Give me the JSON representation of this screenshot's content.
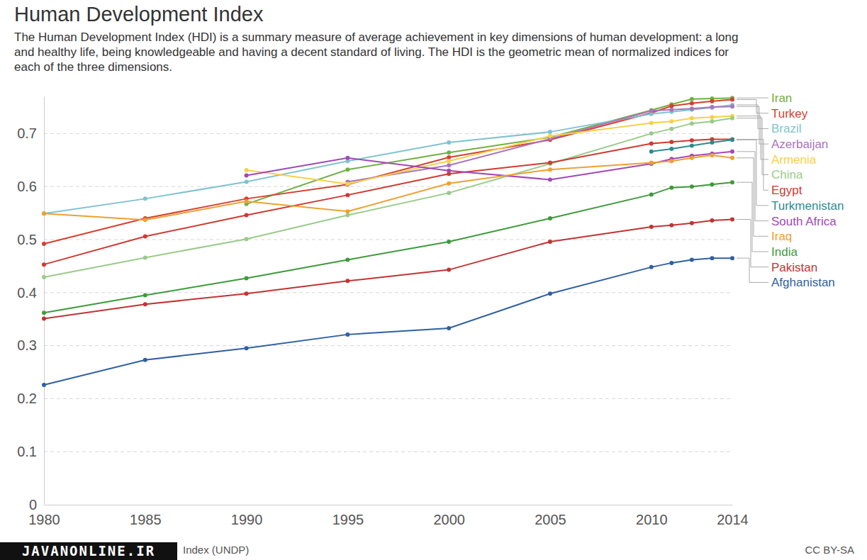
{
  "chart_data": {
    "type": "line",
    "title": "Human Development Index",
    "subtitle": "The Human Development Index (HDI) is a summary measure of average achievement in key dimensions of human development: a long and healthy life, being knowledgeable and having a decent standard of living. The HDI is the geometric mean of normalized indices for each of the three dimensions.",
    "source": "Index (UNDP)",
    "watermark": "JAVANONLINE.IR",
    "license": "CC BY-SA",
    "x": [
      1980,
      1985,
      1990,
      1995,
      2000,
      2005,
      2010,
      2011,
      2012,
      2013,
      2014
    ],
    "xlim": [
      1980,
      2014
    ],
    "xticks": [
      1980,
      1985,
      1990,
      1995,
      2000,
      2005,
      2010,
      2014
    ],
    "ylim": [
      0,
      0.77
    ],
    "yticks": [
      0,
      0.1,
      0.2,
      0.3,
      0.4,
      0.5,
      0.6,
      0.7
    ],
    "grid": true,
    "legend": "right",
    "marker": "circle",
    "series": [
      {
        "name": "Iran",
        "color": "#72b043",
        "values": [
          null,
          null,
          0.567,
          0.632,
          0.664,
          0.693,
          0.744,
          0.755,
          0.765,
          0.766,
          0.767
        ]
      },
      {
        "name": "Turkey",
        "color": "#d6402f",
        "values": [
          0.492,
          0.54,
          0.577,
          0.604,
          0.655,
          0.688,
          0.739,
          0.752,
          0.757,
          0.761,
          0.764
        ]
      },
      {
        "name": "Brazil",
        "color": "#80c3cf",
        "values": [
          0.549,
          0.577,
          0.609,
          0.648,
          0.683,
          0.703,
          0.737,
          0.741,
          0.745,
          0.749,
          0.754
        ]
      },
      {
        "name": "Azerbaijan",
        "color": "#aa73bd",
        "values": [
          null,
          null,
          null,
          0.609,
          0.64,
          0.69,
          0.743,
          0.745,
          0.747,
          0.75,
          0.751
        ]
      },
      {
        "name": "Armenia",
        "color": "#f7d04b",
        "values": [
          null,
          null,
          0.631,
          0.605,
          0.648,
          0.695,
          0.72,
          0.723,
          0.729,
          0.731,
          0.733
        ]
      },
      {
        "name": "China",
        "color": "#9acb8a",
        "values": [
          0.429,
          0.466,
          0.501,
          0.546,
          0.588,
          0.643,
          0.7,
          0.709,
          0.719,
          0.723,
          0.729
        ]
      },
      {
        "name": "Egypt",
        "color": "#cf3a32",
        "values": [
          0.453,
          0.506,
          0.546,
          0.584,
          0.624,
          0.645,
          0.681,
          0.684,
          0.687,
          0.689,
          0.689
        ]
      },
      {
        "name": "Turkmenistan",
        "color": "#2e8b8f",
        "values": [
          null,
          null,
          null,
          null,
          null,
          null,
          0.666,
          0.671,
          0.677,
          0.683,
          0.688
        ]
      },
      {
        "name": "South Africa",
        "color": "#a248b5",
        "values": [
          null,
          null,
          0.621,
          0.654,
          0.63,
          0.613,
          0.643,
          0.652,
          0.658,
          0.662,
          0.666
        ]
      },
      {
        "name": "Iraq",
        "color": "#eea032",
        "values": [
          0.549,
          0.537,
          0.572,
          0.553,
          0.606,
          0.632,
          0.645,
          0.648,
          0.654,
          0.659,
          0.654
        ]
      },
      {
        "name": "India",
        "color": "#3e9a3c",
        "values": [
          0.362,
          0.395,
          0.427,
          0.462,
          0.496,
          0.54,
          0.585,
          0.598,
          0.6,
          0.604,
          0.608
        ]
      },
      {
        "name": "Pakistan",
        "color": "#c23434",
        "values": [
          0.351,
          0.378,
          0.398,
          0.422,
          0.443,
          0.496,
          0.524,
          0.527,
          0.531,
          0.536,
          0.538
        ]
      },
      {
        "name": "Afghanistan",
        "color": "#30609f",
        "values": [
          0.226,
          0.273,
          0.295,
          0.321,
          0.333,
          0.398,
          0.448,
          0.456,
          0.462,
          0.465,
          0.465
        ]
      }
    ]
  }
}
